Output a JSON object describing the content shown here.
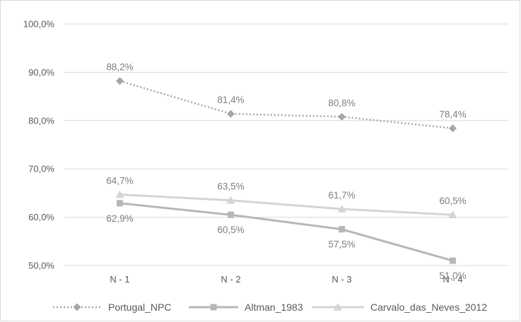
{
  "chart_data": {
    "type": "line",
    "categories": [
      "N - 1",
      "N - 2",
      "N - 3",
      "N - 4"
    ],
    "ylim": [
      50,
      100
    ],
    "yticks": [
      "50,0%",
      "60,0%",
      "70,0%",
      "80,0%",
      "90,0%",
      "100,0%"
    ],
    "grid": true,
    "legend_position": "bottom",
    "series": [
      {
        "name": "Portugal_NPC",
        "values": [
          88.2,
          81.4,
          80.8,
          78.4
        ],
        "labels": [
          "88,2%",
          "81,4%",
          "80,8%",
          "78,4%"
        ],
        "color": "#a6a6a6",
        "marker": "diamond",
        "line_style": "dotted",
        "label_position": "above"
      },
      {
        "name": "Altman_1983",
        "values": [
          62.9,
          60.5,
          57.5,
          51.0
        ],
        "labels": [
          "62,9%",
          "60,5%",
          "57,5%",
          "51,0%"
        ],
        "color": "#b7b7b7",
        "marker": "square",
        "line_style": "solid",
        "label_position": "below"
      },
      {
        "name": "Carvalo_das_Neves_2012",
        "values": [
          64.7,
          63.5,
          61.7,
          60.5
        ],
        "labels": [
          "64,7%",
          "63,5%",
          "61,7%",
          "60,5%"
        ],
        "color": "#d4d4d4",
        "marker": "triangle",
        "line_style": "solid",
        "label_position": "above"
      }
    ]
  }
}
